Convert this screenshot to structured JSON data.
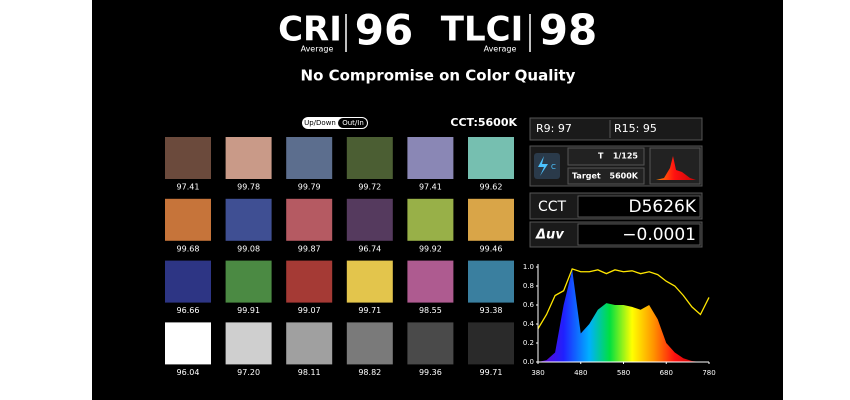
{
  "header": {
    "cri_label": "CRI",
    "cri_sub": "Average",
    "cri_value": "96",
    "tlci_label": "TLCI",
    "tlci_sub": "Average",
    "tlci_value": "98",
    "tagline": "No Compromise on Color Quality"
  },
  "toggle": {
    "options": [
      "Up/Down",
      "Out/In"
    ],
    "active": 1
  },
  "cct_label": "CCT:5600K",
  "swatches": [
    {
      "color": "#6b4a3c",
      "value": "97.41"
    },
    {
      "color": "#c99a88",
      "value": "99.78"
    },
    {
      "color": "#5c6e8e",
      "value": "99.79"
    },
    {
      "color": "#4b5e33",
      "value": "99.72"
    },
    {
      "color": "#8a87b5",
      "value": "97.41"
    },
    {
      "color": "#76bfb0",
      "value": "99.62"
    },
    {
      "color": "#c6743a",
      "value": "99.68"
    },
    {
      "color": "#3f4f93",
      "value": "99.08"
    },
    {
      "color": "#b55a62",
      "value": "99.87"
    },
    {
      "color": "#553a5e",
      "value": "96.74"
    },
    {
      "color": "#98b048",
      "value": "99.92"
    },
    {
      "color": "#d9a548",
      "value": "99.46"
    },
    {
      "color": "#2d3584",
      "value": "96.66"
    },
    {
      "color": "#4b8a43",
      "value": "99.91"
    },
    {
      "color": "#a53a35",
      "value": "99.07"
    },
    {
      "color": "#e3c54c",
      "value": "99.71"
    },
    {
      "color": "#ae5b90",
      "value": "98.55"
    },
    {
      "color": "#3a7f9f",
      "value": "93.38"
    },
    {
      "color": "#ffffff",
      "value": "96.04"
    },
    {
      "color": "#cfcfcf",
      "value": "97.20"
    },
    {
      "color": "#a0a0a0",
      "value": "98.11"
    },
    {
      "color": "#7a7a7a",
      "value": "98.82"
    },
    {
      "color": "#4a4a4a",
      "value": "99.36"
    },
    {
      "color": "#2a2a2a",
      "value": "99.71"
    }
  ],
  "meter": {
    "r9": "R9: 97",
    "r15": "R15: 95",
    "flash_label": "C",
    "t_label": "T",
    "t_value": "1/125",
    "target_label": "Target",
    "target_value": "5600K",
    "cct_name": "CCT",
    "cct_value": "D5626K",
    "duv_name": "Δuv",
    "duv_value": "−0.0001"
  },
  "spectrum": {
    "x": [
      380,
      400,
      420,
      440,
      460,
      480,
      500,
      520,
      540,
      560,
      580,
      600,
      620,
      640,
      660,
      680,
      700,
      720,
      740,
      760,
      780
    ],
    "series": [
      {
        "color": "#ffe600",
        "values": [
          0.35,
          0.5,
          0.7,
          0.75,
          0.98,
          0.95,
          0.95,
          0.97,
          0.93,
          0.97,
          0.95,
          0.96,
          0.93,
          0.95,
          0.92,
          0.85,
          0.8,
          0.7,
          0.58,
          0.5,
          0.68
        ]
      },
      {
        "values": [
          0,
          0.02,
          0.1,
          0.6,
          0.97,
          0.3,
          0.4,
          0.55,
          0.62,
          0.6,
          0.6,
          0.58,
          0.55,
          0.6,
          0.45,
          0.2,
          0.1,
          0.04,
          0.01,
          0,
          0
        ]
      }
    ],
    "xlim": [
      380,
      780
    ],
    "ylim": [
      0,
      1.0
    ],
    "xticks": [
      380,
      480,
      580,
      680,
      780
    ],
    "yticks": [
      {
        "value": 0,
        "label": "0.0"
      },
      {
        "value": 0.2,
        "label": "0.2"
      },
      {
        "value": 0.4,
        "label": "0.4"
      },
      {
        "value": 0.6,
        "label": "0.6"
      },
      {
        "value": 0.8,
        "label": "0.8"
      },
      {
        "value": 1.0,
        "label": "1.0"
      }
    ]
  }
}
